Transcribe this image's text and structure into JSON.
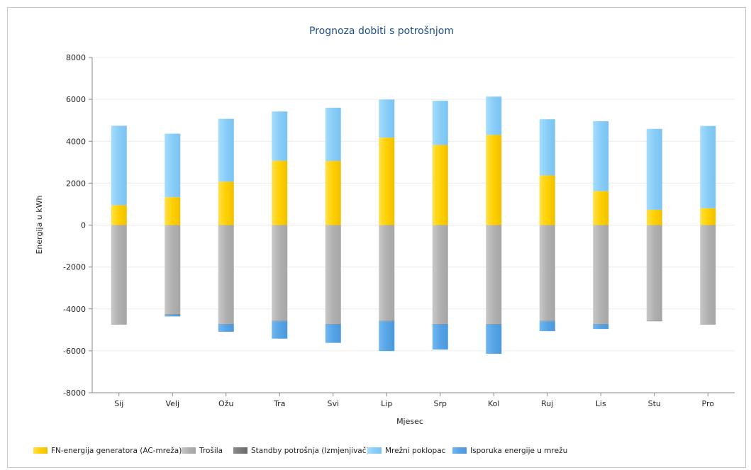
{
  "chart_data": {
    "type": "bar",
    "stacked": true,
    "title": "Prognoza dobiti s potrošnjom",
    "xlabel": "Mjesec",
    "ylabel": "Energija u kWh",
    "ylim": [
      -8000,
      8000
    ],
    "yticks": [
      8000,
      6000,
      4000,
      2000,
      0,
      -2000,
      -4000,
      -6000,
      -8000
    ],
    "grid": "horizontal",
    "legend_position": "bottom-left",
    "categories": [
      "Sij",
      "Velj",
      "Ožu",
      "Tra",
      "Svi",
      "Lip",
      "Srp",
      "Kol",
      "Ruj",
      "Lis",
      "Stu",
      "Pro"
    ],
    "series": [
      {
        "name": "FN-energija generatora (AC-mreža)",
        "color": "#ffd200",
        "values": [
          950,
          1330,
          2070,
          3070,
          3060,
          4170,
          3820,
          4300,
          2370,
          1620,
          730,
          800
        ]
      },
      {
        "name": "Trošila",
        "color": "#b4b4b4",
        "values": [
          -4720,
          -4260,
          -4720,
          -4570,
          -4720,
          -4570,
          -4720,
          -4720,
          -4570,
          -4720,
          -4570,
          -4720
        ]
      },
      {
        "name": "Standby potrošnja (Izmjenjivač)",
        "color": "#7a7a7a",
        "values": [
          -20,
          -20,
          -20,
          -20,
          -20,
          -20,
          -20,
          -20,
          -20,
          -20,
          -20,
          -20
        ]
      },
      {
        "name": "Mrežni poklopac",
        "color": "#8ed0fa",
        "values": [
          3790,
          3030,
          3000,
          2350,
          2540,
          1820,
          2110,
          1830,
          2680,
          3340,
          3860,
          3930
        ]
      },
      {
        "name": "Isporuka energije u mrežu",
        "color": "#5aa8ea",
        "values": [
          0,
          -80,
          -350,
          -830,
          -880,
          -1420,
          -1200,
          -1400,
          -470,
          -220,
          0,
          0
        ]
      }
    ]
  }
}
